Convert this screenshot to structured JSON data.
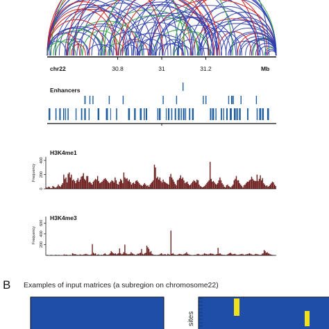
{
  "colors": {
    "arc_blue": "#2f3fb0",
    "arc_green": "#2aa13a",
    "arc_red": "#d01c1c",
    "enhancer": "#1f5fa0",
    "histone": "#6b1a1a",
    "matrix_bg": "#1f4ea8",
    "matrix_hit": "#f0e11c",
    "axis": "#111111"
  },
  "genome_axis": {
    "chrom_label": "chr22",
    "unit_label": "Mb",
    "ticks": [
      "30.8",
      "31",
      "31.2"
    ],
    "tick_values": [
      30.8,
      31.0,
      31.2
    ],
    "range": [
      30.48,
      31.52
    ]
  },
  "enhancers": {
    "title": "Enhancers"
  },
  "chart_data": [
    {
      "type": "bar",
      "title": "H3K4me1",
      "ylabel": "Frequency",
      "yticks": [
        "0",
        "200",
        "400"
      ],
      "ylim": [
        0,
        450
      ],
      "values": [
        20,
        15,
        30,
        25,
        10,
        12,
        40,
        30,
        15,
        20,
        35,
        60,
        40,
        30,
        55,
        80,
        200,
        140,
        160,
        90,
        210,
        230,
        160,
        200,
        120,
        130,
        110,
        80,
        120,
        150,
        100,
        130,
        170,
        180,
        220,
        140,
        120,
        180,
        180,
        90,
        100,
        80,
        60,
        100,
        120,
        140,
        130,
        180,
        110,
        80,
        90,
        100,
        120,
        140,
        150,
        130,
        110,
        90,
        80,
        100,
        120,
        110,
        90,
        160,
        120,
        70,
        60,
        100,
        140,
        120,
        80,
        230,
        160,
        140,
        150,
        110,
        130,
        95,
        60,
        80,
        90,
        70,
        110,
        120,
        100,
        80,
        60,
        50,
        40,
        60,
        80,
        60,
        40,
        50,
        30,
        60,
        80,
        100,
        120,
        340,
        300,
        150,
        170,
        130,
        160,
        110,
        90,
        130,
        100,
        90,
        80,
        70,
        60,
        170,
        210,
        160,
        130,
        100,
        70,
        50,
        120,
        130,
        150,
        190,
        140,
        160,
        120,
        80,
        90,
        100,
        70,
        50,
        60,
        80,
        100,
        120,
        110,
        90,
        130,
        120,
        60,
        40,
        30,
        20,
        30,
        40,
        60,
        80,
        100,
        120,
        380,
        140,
        100,
        110,
        90,
        70,
        60,
        80,
        120,
        160,
        120,
        80,
        60,
        30,
        20,
        50,
        60,
        40,
        30,
        20,
        40,
        60,
        120,
        140,
        180,
        120,
        120,
        80,
        60,
        40,
        20,
        50,
        60,
        80,
        100,
        100,
        120,
        130,
        170,
        140,
        120,
        110,
        110,
        200,
        110,
        140,
        190,
        120,
        150,
        80,
        60,
        40,
        50,
        30,
        40,
        60,
        80,
        100,
        90,
        60,
        40
      ]
    },
    {
      "type": "bar",
      "title": "H3K4me3",
      "ylabel": "Frequency",
      "yticks": [
        "200",
        "400",
        "600"
      ],
      "ylim": [
        0,
        720
      ],
      "values": [
        5,
        10,
        5,
        3,
        8,
        10,
        5,
        4,
        3,
        12,
        8,
        6,
        10,
        5,
        3,
        6,
        4,
        20,
        10,
        15,
        12,
        5,
        8,
        10,
        6,
        40,
        30,
        20,
        25,
        10,
        12,
        8,
        20,
        15,
        10,
        12,
        20,
        25,
        30,
        20,
        15,
        10,
        12,
        20,
        210,
        50,
        30,
        40,
        10,
        15,
        20,
        8,
        10,
        12,
        10,
        25,
        40,
        20,
        10,
        12,
        20,
        40,
        80,
        60,
        40,
        30,
        40,
        20,
        30,
        40,
        130,
        40,
        20,
        30,
        60,
        200,
        40,
        30,
        20,
        25,
        30,
        60,
        40,
        30,
        20,
        10,
        12,
        30,
        30,
        40,
        50,
        120,
        30,
        20,
        40,
        50,
        180,
        150,
        120,
        60,
        80,
        30,
        20,
        10,
        12,
        8,
        10,
        12,
        15,
        30,
        40,
        20,
        15,
        25,
        20,
        10,
        30,
        20,
        15,
        460,
        30,
        40,
        20,
        15,
        10,
        12,
        20,
        30,
        25,
        20,
        15,
        20,
        30,
        40,
        60,
        30,
        20,
        15,
        10,
        8,
        6,
        10,
        12,
        10,
        25,
        30,
        20,
        10,
        12,
        15,
        20,
        40,
        30,
        25,
        20,
        20,
        30,
        40,
        30,
        30,
        20,
        10,
        20,
        25,
        140,
        30,
        40,
        20,
        15,
        10,
        12,
        8,
        10,
        20,
        30,
        40,
        50,
        30,
        20,
        25,
        30,
        20,
        10,
        12,
        15,
        20,
        25,
        30,
        20,
        10,
        15,
        20,
        25,
        30,
        40,
        30,
        20,
        15,
        10,
        20,
        30,
        25,
        20,
        15,
        10,
        12,
        30,
        40,
        100,
        80,
        50,
        60,
        40,
        30,
        20,
        15,
        10,
        8,
        6,
        5
      ]
    }
  ],
  "panel_b": {
    "letter": "B",
    "caption": "Examples of input matrices (a subregion on chromosome22)",
    "right_axis_label": "sites"
  }
}
